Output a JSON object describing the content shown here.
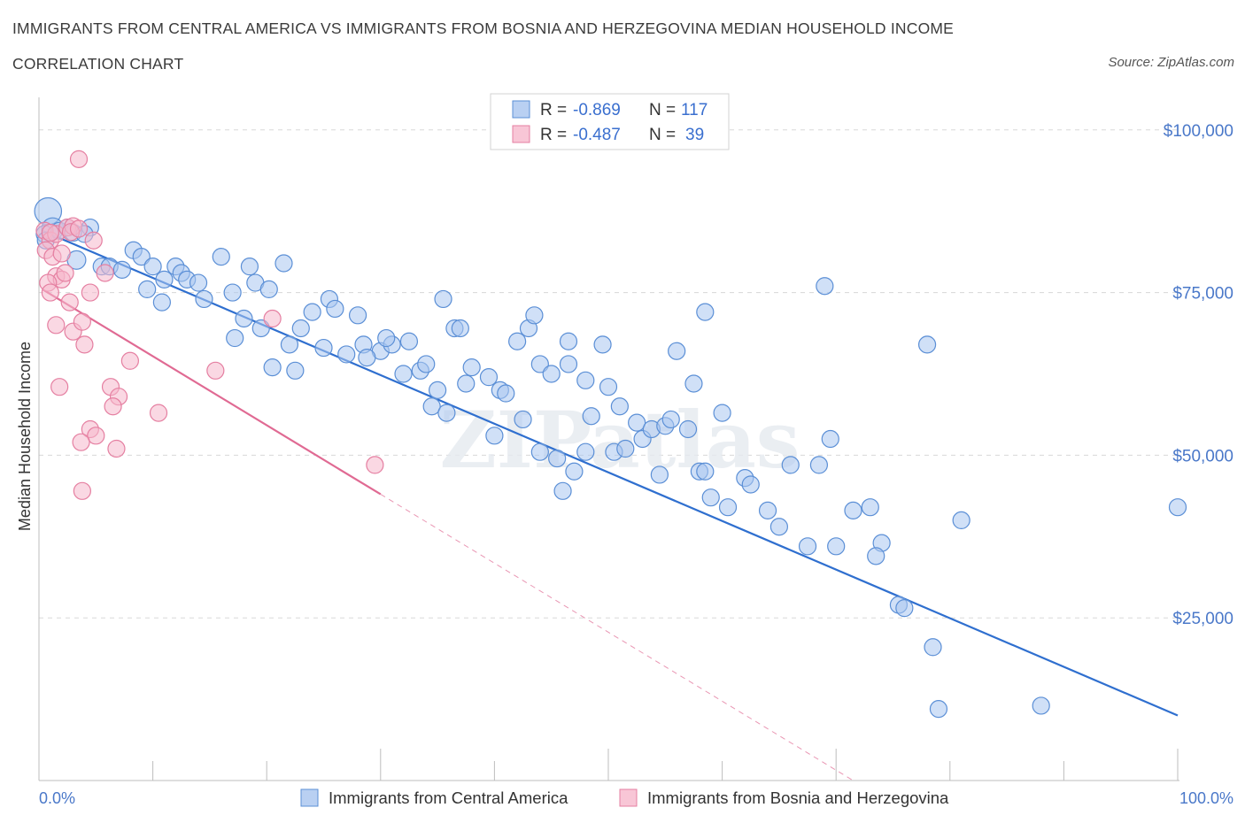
{
  "title": "IMMIGRANTS FROM CENTRAL AMERICA VS IMMIGRANTS FROM BOSNIA AND HERZEGOVINA MEDIAN HOUSEHOLD INCOME",
  "subtitle": "CORRELATION CHART",
  "source": "Source: ZipAtlas.com",
  "watermark": "ZIPatlas",
  "colors": {
    "blue_fill": "#a9c6f0",
    "blue_stroke": "#5b8fd6",
    "blue_line": "#2f6fcf",
    "pink_fill": "#f6b8cc",
    "pink_stroke": "#e57fa1",
    "pink_line": "#e06a93",
    "grid": "#d8d8d8",
    "axis_text": "#4a78c9"
  },
  "legend_top": {
    "rows": [
      {
        "r_label": "R =",
        "r_value": "-0.869",
        "n_label": "N =",
        "n_value": "117"
      },
      {
        "r_label": "R =",
        "r_value": "-0.487",
        "n_label": "N =",
        "n_value": "39"
      }
    ]
  },
  "legend_bottom": [
    "Immigrants from Central America",
    "Immigrants from Bosnia and Herzegovina"
  ],
  "chart_data": {
    "type": "scatter",
    "title": "IMMIGRANTS FROM CENTRAL AMERICA VS IMMIGRANTS FROM BOSNIA AND HERZEGOVINA MEDIAN HOUSEHOLD INCOME",
    "xlabel": "",
    "ylabel": "Median Household Income",
    "xlim": [
      0,
      100
    ],
    "ylim": [
      0,
      105000
    ],
    "x_tick_labels": [
      "0.0%",
      "100.0%"
    ],
    "y_ticks": [
      25000,
      50000,
      75000,
      100000
    ],
    "y_tick_labels": [
      "$25,000",
      "$50,000",
      "$75,000",
      "$100,000"
    ],
    "grid": true,
    "legend_placement": "top-center",
    "series": [
      {
        "name": "Immigrants from Central America",
        "color": "#a9c6f0",
        "trend": {
          "x": [
            0.3,
            100
          ],
          "y": [
            84500,
            10000
          ]
        },
        "points": [
          [
            0.8,
            87500,
            1.6
          ],
          [
            1.2,
            84800,
            1.3
          ],
          [
            0.5,
            84000,
            1
          ],
          [
            1.8,
            84500,
            1
          ],
          [
            2.5,
            85000,
            1
          ],
          [
            3.0,
            84200,
            1
          ],
          [
            4.5,
            85000,
            1
          ],
          [
            0.6,
            83000,
            1
          ],
          [
            4.0,
            84000,
            1
          ],
          [
            3.3,
            80000,
            1.1
          ],
          [
            5.5,
            79000,
            1
          ],
          [
            6.2,
            79000,
            1
          ],
          [
            8.3,
            81500,
            1
          ],
          [
            9.0,
            80500,
            1
          ],
          [
            7.3,
            78500,
            1
          ],
          [
            10.0,
            79000,
            1
          ],
          [
            12.0,
            79000,
            1
          ],
          [
            12.5,
            78000,
            1
          ],
          [
            11.0,
            77000,
            1
          ],
          [
            13.0,
            77000,
            1
          ],
          [
            14.0,
            76500,
            1
          ],
          [
            9.5,
            75500,
            1
          ],
          [
            16.0,
            80500,
            1
          ],
          [
            18.5,
            79000,
            1
          ],
          [
            19.0,
            76500,
            1
          ],
          [
            20.2,
            75500,
            1
          ],
          [
            17.0,
            75000,
            1
          ],
          [
            14.5,
            74000,
            1
          ],
          [
            21.5,
            79500,
            1
          ],
          [
            10.8,
            73500,
            1
          ],
          [
            18.0,
            71000,
            1
          ],
          [
            19.5,
            69500,
            1
          ],
          [
            22.0,
            67000,
            1
          ],
          [
            23.0,
            69500,
            1
          ],
          [
            17.2,
            68000,
            1
          ],
          [
            24.0,
            72000,
            1
          ],
          [
            25.5,
            74000,
            1
          ],
          [
            26.0,
            72500,
            1
          ],
          [
            28.0,
            71500,
            1
          ],
          [
            28.5,
            67000,
            1
          ],
          [
            30.0,
            66000,
            1
          ],
          [
            31.0,
            67000,
            1
          ],
          [
            28.8,
            65000,
            1
          ],
          [
            27.0,
            65500,
            1
          ],
          [
            32.5,
            67500,
            1
          ],
          [
            35.5,
            74000,
            1
          ],
          [
            36.5,
            69500,
            1
          ],
          [
            37.0,
            69500,
            1
          ],
          [
            33.5,
            63000,
            1
          ],
          [
            34.0,
            64000,
            1
          ],
          [
            35.0,
            60000,
            1
          ],
          [
            39.5,
            62000,
            1
          ],
          [
            40.5,
            60000,
            1
          ],
          [
            41.0,
            59500,
            1
          ],
          [
            37.5,
            61000,
            1
          ],
          [
            34.5,
            57500,
            1
          ],
          [
            35.8,
            56500,
            1
          ],
          [
            38.0,
            63500,
            1
          ],
          [
            42.0,
            67500,
            1
          ],
          [
            43.0,
            69500,
            1
          ],
          [
            44.0,
            64000,
            1
          ],
          [
            45.0,
            62500,
            1
          ],
          [
            46.5,
            64000,
            1
          ],
          [
            48.0,
            61500,
            1
          ],
          [
            48.5,
            56000,
            1
          ],
          [
            49.5,
            67000,
            1
          ],
          [
            50.0,
            60500,
            1
          ],
          [
            51.0,
            57500,
            1
          ],
          [
            50.5,
            50500,
            1
          ],
          [
            51.5,
            51000,
            1
          ],
          [
            53.0,
            52500,
            1
          ],
          [
            52.5,
            55000,
            1
          ],
          [
            53.8,
            54000,
            1
          ],
          [
            55.0,
            54500,
            1
          ],
          [
            55.5,
            55500,
            1
          ],
          [
            57.0,
            54000,
            1
          ],
          [
            47.0,
            47500,
            1
          ],
          [
            42.5,
            55500,
            1
          ],
          [
            44.0,
            50500,
            1
          ],
          [
            45.5,
            49500,
            1
          ],
          [
            46.0,
            44500,
            1
          ],
          [
            58.0,
            47500,
            1
          ],
          [
            59.0,
            43500,
            1
          ],
          [
            60.0,
            56500,
            1
          ],
          [
            58.5,
            47500,
            1
          ],
          [
            60.5,
            42000,
            1
          ],
          [
            62.0,
            46500,
            1
          ],
          [
            62.5,
            45500,
            1
          ],
          [
            64.0,
            41500,
            1
          ],
          [
            65.0,
            39000,
            1
          ],
          [
            66.0,
            48500,
            1
          ],
          [
            67.5,
            36000,
            1
          ],
          [
            68.5,
            48500,
            1
          ],
          [
            69.0,
            76000,
            1
          ],
          [
            69.5,
            52500,
            1
          ],
          [
            70.0,
            36000,
            1
          ],
          [
            71.5,
            41500,
            1
          ],
          [
            73.0,
            42000,
            1
          ],
          [
            74.0,
            36500,
            1
          ],
          [
            73.5,
            34500,
            1
          ],
          [
            75.5,
            27000,
            1
          ],
          [
            76.0,
            26500,
            1
          ],
          [
            78.0,
            67000,
            1
          ],
          [
            78.5,
            20500,
            1
          ],
          [
            79.0,
            11000,
            1
          ],
          [
            81.0,
            40000,
            1
          ],
          [
            88.0,
            11500,
            1
          ],
          [
            100.0,
            42000,
            1
          ],
          [
            56.0,
            66000,
            1
          ],
          [
            57.5,
            61000,
            1
          ],
          [
            58.5,
            72000,
            1
          ],
          [
            43.5,
            71500,
            1
          ],
          [
            46.5,
            67500,
            1
          ],
          [
            30.5,
            68000,
            1
          ],
          [
            22.5,
            63000,
            1
          ],
          [
            20.5,
            63500,
            1
          ],
          [
            25.0,
            66500,
            1
          ],
          [
            32.0,
            62500,
            1
          ],
          [
            40.0,
            53000,
            1
          ],
          [
            48.0,
            50500,
            1
          ],
          [
            54.5,
            47000,
            1
          ]
        ]
      },
      {
        "name": "Immigrants from Bosnia and Herzegovina",
        "color": "#f6b8cc",
        "trend": {
          "x": [
            0.3,
            30
          ],
          "y": [
            75500,
            44000
          ]
        },
        "trend_dashed": {
          "x": [
            30,
            71.5
          ],
          "y": [
            44000,
            0
          ]
        },
        "points": [
          [
            3.5,
            95500,
            1
          ],
          [
            0.5,
            84500,
            1
          ],
          [
            1.0,
            83000,
            1
          ],
          [
            1.5,
            84000,
            1
          ],
          [
            0.6,
            81500,
            1
          ],
          [
            1.2,
            80500,
            1
          ],
          [
            2.0,
            81000,
            1
          ],
          [
            2.5,
            85000,
            1
          ],
          [
            3.0,
            85200,
            1
          ],
          [
            4.8,
            83000,
            1
          ],
          [
            1.5,
            77500,
            1
          ],
          [
            2.0,
            77000,
            1
          ],
          [
            2.3,
            78000,
            1
          ],
          [
            0.8,
            76500,
            1
          ],
          [
            1.0,
            75000,
            1
          ],
          [
            4.5,
            75000,
            1
          ],
          [
            5.8,
            78000,
            1
          ],
          [
            2.7,
            73500,
            1
          ],
          [
            1.5,
            70000,
            1
          ],
          [
            3.0,
            69000,
            1
          ],
          [
            3.8,
            70500,
            1
          ],
          [
            4.0,
            67000,
            1
          ],
          [
            8.0,
            64500,
            1
          ],
          [
            1.8,
            60500,
            1
          ],
          [
            6.3,
            60500,
            1
          ],
          [
            7.0,
            59000,
            1
          ],
          [
            6.5,
            57500,
            1
          ],
          [
            10.5,
            56500,
            1
          ],
          [
            15.5,
            63000,
            1
          ],
          [
            20.5,
            71000,
            1
          ],
          [
            4.5,
            54000,
            1
          ],
          [
            5.0,
            53000,
            1
          ],
          [
            3.7,
            52000,
            1
          ],
          [
            6.8,
            51000,
            1
          ],
          [
            3.8,
            44500,
            1
          ],
          [
            29.5,
            48500,
            1
          ],
          [
            1.0,
            84200,
            1
          ],
          [
            2.8,
            84300,
            1
          ],
          [
            3.5,
            84800,
            1
          ]
        ]
      }
    ]
  }
}
